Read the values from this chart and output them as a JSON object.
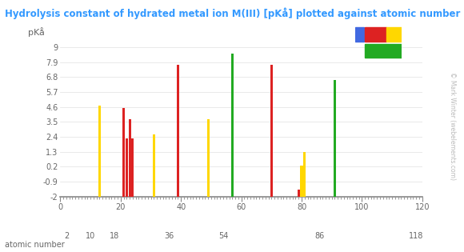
{
  "title": "Hydrolysis constant of hydrated metal ion M(III) [pKå] plotted against atomic number",
  "ylabel": "pKå",
  "xlabel_bottom": "atomic number",
  "xlabel_ticks_major": [
    0,
    20,
    40,
    60,
    80,
    100,
    120
  ],
  "xlabel_ticks_period": [
    2,
    10,
    18,
    36,
    54,
    86,
    118
  ],
  "yticks": [
    9,
    7.9,
    6.8,
    5.7,
    4.6,
    3.5,
    2.4,
    1.3,
    0.2,
    -0.9,
    -2
  ],
  "xlim": [
    0,
    120
  ],
  "ylim": [
    -2.0,
    9.5
  ],
  "baseline": -2,
  "bars": [
    {
      "x": 13,
      "value": 4.7,
      "color": "#ffd700"
    },
    {
      "x": 21,
      "value": 4.5,
      "color": "#dd2222"
    },
    {
      "x": 22,
      "value": 2.3,
      "color": "#dd2222"
    },
    {
      "x": 23,
      "value": 3.7,
      "color": "#dd2222"
    },
    {
      "x": 24,
      "value": 2.3,
      "color": "#dd2222"
    },
    {
      "x": 31,
      "value": 2.6,
      "color": "#ffd700"
    },
    {
      "x": 39,
      "value": 7.7,
      "color": "#dd2222"
    },
    {
      "x": 49,
      "value": 3.7,
      "color": "#ffd700"
    },
    {
      "x": 57,
      "value": 8.5,
      "color": "#22aa22"
    },
    {
      "x": 70,
      "value": 7.7,
      "color": "#dd2222"
    },
    {
      "x": 79,
      "value": -1.5,
      "color": "#dd2222"
    },
    {
      "x": 80,
      "value": 0.3,
      "color": "#ffd700"
    },
    {
      "x": 81,
      "value": 1.3,
      "color": "#ffd700"
    },
    {
      "x": 91,
      "value": 6.6,
      "color": "#22aa22"
    }
  ],
  "title_color": "#3399ff",
  "axis_color": "#888888",
  "tick_color": "#666666",
  "background_color": "#ffffff",
  "bar_width": 0.8,
  "watermark": "© Mark Winter (webelements.com)"
}
